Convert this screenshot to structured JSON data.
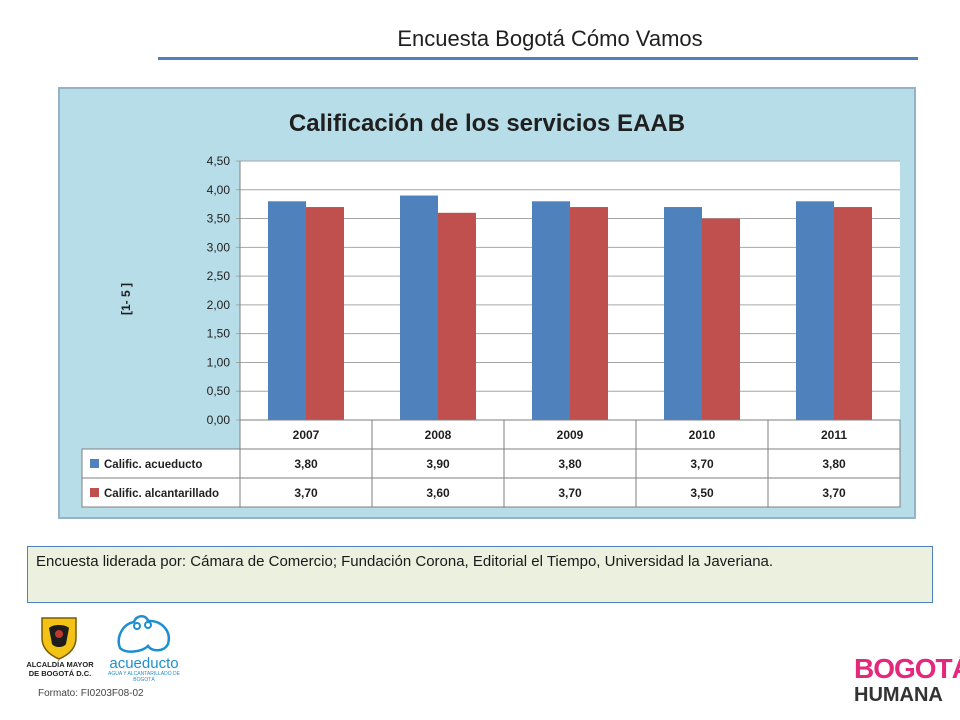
{
  "header": {
    "title": "Encuesta Bogotá Cómo Vamos"
  },
  "chart_data": {
    "type": "bar",
    "title": "Calificación de los servicios EAAB",
    "ylabel": "[1- 5 ]",
    "xlabel": "",
    "categories": [
      "2007",
      "2008",
      "2009",
      "2010",
      "2011"
    ],
    "ylim": [
      0,
      4.5
    ],
    "yticks": [
      "0,00",
      "0,50",
      "1,00",
      "1,50",
      "2,00",
      "2,50",
      "3,00",
      "3,50",
      "4,00",
      "4,50"
    ],
    "grid": true,
    "series": [
      {
        "name": "Calific. acueducto",
        "color": "#4f81bd",
        "values": [
          3.8,
          3.9,
          3.8,
          3.7,
          3.8
        ],
        "labels": [
          "3,80",
          "3,90",
          "3,80",
          "3,70",
          "3,80"
        ]
      },
      {
        "name": "Calific. alcantarillado",
        "color": "#c0504d",
        "values": [
          3.7,
          3.6,
          3.7,
          3.5,
          3.7
        ],
        "labels": [
          "3,70",
          "3,60",
          "3,70",
          "3,50",
          "3,70"
        ]
      }
    ]
  },
  "note": {
    "text": "Encuesta liderada por: Cámara de Comercio; Fundación Corona, Editorial el Tiempo, Universidad la Javeriana."
  },
  "footer": {
    "format_label": "Formato: FI0203F08-02",
    "alcaldia_logo_text": "ALCALDÍA MAYOR DE BOGOTÁ D.C.",
    "acueducto_logo_text": "acueducto",
    "acueducto_logo_subtext": "AGUA Y ALCANTARILLADO DE BOGOTÁ",
    "bogota_logo_text": "BOGOTÁ",
    "humana_logo_text": "HUMANA"
  }
}
